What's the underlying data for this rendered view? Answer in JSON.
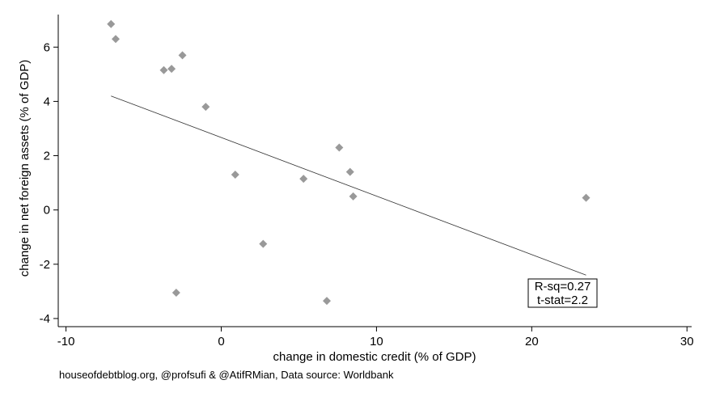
{
  "chart_data": {
    "type": "scatter",
    "xlabel": "change in domestic credit (% of GDP)",
    "ylabel": "change in net foreign assets (% of GDP)",
    "xlim": [
      -10.5,
      30.3
    ],
    "ylim": [
      -4.3,
      7.2
    ],
    "xticks": [
      -10,
      0,
      10,
      20,
      30
    ],
    "yticks": [
      -4,
      -2,
      0,
      2,
      4,
      6
    ],
    "grid": false,
    "points": [
      {
        "x": -7.1,
        "y": 6.85
      },
      {
        "x": -6.8,
        "y": 6.3
      },
      {
        "x": -2.5,
        "y": 5.7
      },
      {
        "x": -3.7,
        "y": 5.15
      },
      {
        "x": -3.2,
        "y": 5.2
      },
      {
        "x": -1.0,
        "y": 3.8
      },
      {
        "x": 0.9,
        "y": 1.3
      },
      {
        "x": 5.3,
        "y": 1.15
      },
      {
        "x": 7.6,
        "y": 2.3
      },
      {
        "x": 8.3,
        "y": 1.4
      },
      {
        "x": 8.5,
        "y": 0.5
      },
      {
        "x": 23.5,
        "y": 0.45
      },
      {
        "x": 2.7,
        "y": -1.25
      },
      {
        "x": -2.9,
        "y": -3.05
      },
      {
        "x": 6.8,
        "y": -3.35
      }
    ],
    "fit_line": {
      "x": [
        -7.1,
        23.5
      ],
      "y": [
        4.2,
        -2.4
      ]
    },
    "annotation": [
      "R-sq=0.27",
      "t-stat=2.2"
    ],
    "colors": {
      "points": "#999999",
      "line": "#333333"
    }
  },
  "footer": {
    "source": "houseofdebtblog.org, @profsufi & @AtifRMian, Data source: Worldbank"
  }
}
